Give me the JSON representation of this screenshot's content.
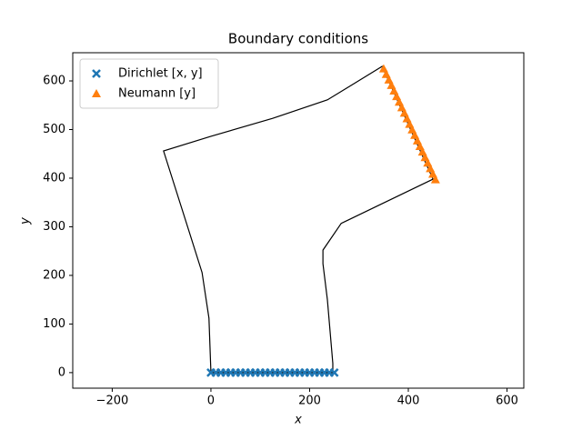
{
  "chart_data": {
    "type": "scatter",
    "title": "Boundary conditions",
    "x_label": "x",
    "y_label": "y",
    "xlim": [
      -280,
      634
    ],
    "ylim": [
      -32,
      658
    ],
    "xticks": [
      {
        "value": -200,
        "label": "−200"
      },
      0,
      200,
      400,
      600
    ],
    "yticks": [
      0,
      100,
      200,
      300,
      400,
      500,
      600
    ],
    "legend": "upper left",
    "series": [
      {
        "kind": "line",
        "color": "#000000",
        "x": [
          0,
          -4,
          -18,
          -41,
          -96,
          0,
          125,
          236,
          347,
          450,
          264,
          227,
          227,
          236,
          247,
          247,
          0
        ],
        "values": [
          0,
          112,
          206,
          280,
          456,
          486,
          523,
          561,
          630,
          398,
          307,
          252,
          224,
          150,
          19,
          0,
          0
        ]
      },
      {
        "name": "Dirichlet  [x, y]",
        "kind": "x",
        "color": "#1f77b4",
        "x": [
          0,
          10,
          20,
          30,
          40,
          50,
          60,
          70,
          80,
          90,
          100,
          110,
          120,
          130,
          140,
          150,
          160,
          170,
          180,
          190,
          200,
          210,
          220,
          230,
          240,
          250
        ],
        "values": [
          0,
          0,
          0,
          0,
          0,
          0,
          0,
          0,
          0,
          0,
          0,
          0,
          0,
          0,
          0,
          0,
          0,
          0,
          0,
          0,
          0,
          0,
          0,
          0,
          0,
          0
        ]
      },
      {
        "name": "Neumann  [y]",
        "kind": "triangle",
        "color": "#ff7f0e",
        "x": [
          350,
          355.25,
          360.5,
          365.75,
          371,
          376.25,
          381.5,
          386.75,
          392,
          397.25,
          402.5,
          407.75,
          413,
          418.25,
          423.5,
          428.75,
          434,
          439.25,
          444.5,
          449.75,
          455
        ],
        "values": [
          625,
          613.6,
          602.2,
          590.8,
          579.4,
          568,
          556.6,
          545.2,
          533.8,
          522.4,
          511,
          499.6,
          488.2,
          476.8,
          465.4,
          454,
          442.6,
          431.2,
          419.8,
          408.4,
          397
        ]
      }
    ]
  }
}
